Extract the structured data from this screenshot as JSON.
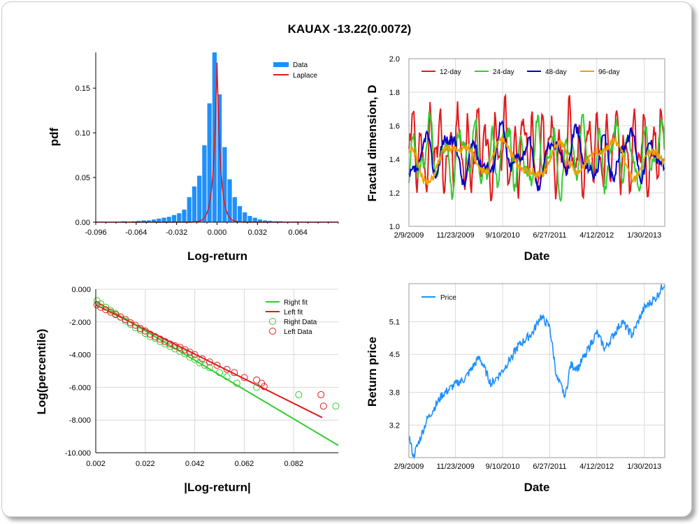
{
  "title": "KAUAX -13.22(0.0072)",
  "colors": {
    "data_bar": "#1e90ff",
    "laplace": "#e31a1c",
    "d12": "#e31a1c",
    "d24": "#33cc33",
    "d48": "#0000cc",
    "d96": "#f0a000",
    "right_fit": "#33cc33",
    "left_fit": "#e31a1c",
    "price": "#1e90ff",
    "grid": "#d9d9d9"
  },
  "chart_data": [
    {
      "type": "bar",
      "id": "pdf",
      "xlabel": "Log-return",
      "ylabel": "pdf",
      "xlim": [
        -0.096,
        0.096
      ],
      "ylim": [
        0,
        0.19
      ],
      "xticks": [
        "-0.096",
        "-0.064",
        "-0.032",
        "0.000",
        "0.032",
        "0.064"
      ],
      "yticks": [
        "0.00",
        "0.05",
        "0.10",
        "0.15"
      ],
      "legend": [
        "Data",
        "Laplace"
      ],
      "legend_position": "top-right",
      "bin_width": 0.004,
      "bin_centers": [
        -0.074,
        -0.07,
        -0.066,
        -0.062,
        -0.058,
        -0.054,
        -0.05,
        -0.046,
        -0.042,
        -0.038,
        -0.034,
        -0.03,
        -0.026,
        -0.022,
        -0.018,
        -0.014,
        -0.01,
        -0.006,
        -0.002,
        0.002,
        0.006,
        0.01,
        0.014,
        0.018,
        0.022,
        0.026,
        0.03,
        0.034,
        0.038,
        0.042,
        0.046,
        0.05,
        0.054,
        0.058,
        0.062,
        0.066,
        0.07,
        0.074
      ],
      "values": [
        0.001,
        0.0005,
        0.001,
        0.0015,
        0.002,
        0.002,
        0.003,
        0.004,
        0.005,
        0.006,
        0.008,
        0.01,
        0.014,
        0.028,
        0.04,
        0.052,
        0.086,
        0.133,
        0.19,
        0.143,
        0.084,
        0.048,
        0.028,
        0.018,
        0.011,
        0.007,
        0.005,
        0.003,
        0.002,
        0.0015,
        0.001,
        0.001,
        0.0005,
        0.0005,
        0.0005,
        0.0003,
        0.0003,
        0.0002
      ],
      "laplace": {
        "mu": 0.0,
        "b": 0.0028
      }
    },
    {
      "type": "line",
      "id": "fractal",
      "xlabel": "Date",
      "ylabel": "Fractal dimension, D",
      "ylim": [
        1.0,
        2.0
      ],
      "xticks": [
        "2/9/2009",
        "11/23/2009",
        "9/10/2010",
        "6/27/2011",
        "4/12/2012",
        "1/30/2013"
      ],
      "yticks": [
        "1.0",
        "1.2",
        "1.4",
        "1.6",
        "1.8",
        "2.0"
      ],
      "legend_position": "top",
      "x_start": "2/9/2009",
      "x_end": "6/5/2013",
      "x_step_days": 5,
      "series": [
        {
          "name": "12-day",
          "color_key": "d12",
          "base": 1.45,
          "amp": 0.3,
          "freq": 0.55,
          "seed": 11
        },
        {
          "name": "24-day",
          "color_key": "d24",
          "base": 1.42,
          "amp": 0.24,
          "freq": 0.33,
          "seed": 23
        },
        {
          "name": "48-day",
          "color_key": "d48",
          "base": 1.42,
          "amp": 0.18,
          "freq": 0.2,
          "seed": 37
        },
        {
          "name": "96-day",
          "color_key": "d96",
          "base": 1.4,
          "amp": 0.14,
          "freq": 0.1,
          "seed": 51
        }
      ]
    },
    {
      "type": "scatter",
      "id": "tail",
      "xlabel": "|Log-return|",
      "ylabel": "Log(percentile)",
      "xlim": [
        0.002,
        0.1
      ],
      "ylim": [
        -10.0,
        0.0
      ],
      "xticks": [
        "0.002",
        "0.022",
        "0.042",
        "0.062",
        "0.082"
      ],
      "yticks": [
        "0.000",
        "-2.000",
        "-4.000",
        "-6.000",
        "-8.000",
        "-10.000"
      ],
      "legend": [
        "Right fit",
        "Left fit",
        "Right Data",
        "Left Data"
      ],
      "legend_position": "top-right",
      "right_fit": {
        "x": [
          0.002,
          0.1
        ],
        "y": [
          -0.75,
          -9.55
        ]
      },
      "left_fit": {
        "x": [
          0.002,
          0.0935
        ],
        "y": [
          -0.95,
          -7.85
        ]
      },
      "right_data": {
        "x": [
          0.0025,
          0.004,
          0.006,
          0.008,
          0.01,
          0.012,
          0.014,
          0.016,
          0.018,
          0.02,
          0.022,
          0.024,
          0.026,
          0.028,
          0.03,
          0.032,
          0.034,
          0.036,
          0.038,
          0.04,
          0.042,
          0.044,
          0.046,
          0.048,
          0.052,
          0.055,
          0.059,
          0.067,
          0.084,
          0.099
        ],
        "y": [
          -0.7,
          -0.9,
          -1.1,
          -1.3,
          -1.5,
          -1.7,
          -1.95,
          -2.15,
          -2.35,
          -2.5,
          -2.7,
          -2.9,
          -3.0,
          -3.2,
          -3.35,
          -3.5,
          -3.65,
          -3.8,
          -3.95,
          -4.15,
          -4.3,
          -4.5,
          -4.65,
          -4.8,
          -5.1,
          -5.35,
          -5.75,
          -6.0,
          -6.45,
          -7.15
        ]
      },
      "left_data": {
        "x": [
          0.0025,
          0.004,
          0.006,
          0.008,
          0.01,
          0.012,
          0.014,
          0.016,
          0.018,
          0.02,
          0.022,
          0.024,
          0.026,
          0.028,
          0.03,
          0.032,
          0.034,
          0.036,
          0.038,
          0.04,
          0.042,
          0.045,
          0.048,
          0.051,
          0.055,
          0.058,
          0.062,
          0.067,
          0.069,
          0.07,
          0.093,
          0.094
        ],
        "y": [
          -0.95,
          -1.1,
          -1.25,
          -1.4,
          -1.55,
          -1.7,
          -1.85,
          -2.05,
          -2.2,
          -2.4,
          -2.55,
          -2.75,
          -2.9,
          -3.05,
          -3.2,
          -3.35,
          -3.45,
          -3.55,
          -3.7,
          -3.85,
          -4.0,
          -4.25,
          -4.45,
          -4.65,
          -4.9,
          -5.1,
          -5.4,
          -5.55,
          -5.75,
          -5.95,
          -6.45,
          -7.15
        ]
      }
    },
    {
      "type": "line",
      "id": "price",
      "xlabel": "Date",
      "ylabel": "Return price",
      "ylim": [
        2.6,
        5.8
      ],
      "xticks": [
        "2/9/2009",
        "11/23/2009",
        "9/10/2010",
        "6/27/2011",
        "4/12/2012",
        "1/30/2013"
      ],
      "yticks": [
        "3.2",
        "3.8",
        "4.5",
        "5.1"
      ],
      "legend": [
        "Price"
      ],
      "legend_position": "top-left",
      "x_start": "2/9/2009",
      "x_end": "6/5/2013",
      "x_step_days": 4,
      "anchors": [
        {
          "date": "2/9/2009",
          "value": 3.0
        },
        {
          "date": "3/9/2009",
          "value": 2.62
        },
        {
          "date": "6/1/2009",
          "value": 3.3
        },
        {
          "date": "9/1/2009",
          "value": 3.75
        },
        {
          "date": "11/23/2009",
          "value": 3.95
        },
        {
          "date": "1/20/2010",
          "value": 4.05
        },
        {
          "date": "4/20/2010",
          "value": 4.45
        },
        {
          "date": "7/1/2010",
          "value": 3.95
        },
        {
          "date": "9/10/2010",
          "value": 4.2
        },
        {
          "date": "12/15/2010",
          "value": 4.65
        },
        {
          "date": "3/15/2011",
          "value": 4.9
        },
        {
          "date": "5/1/2011",
          "value": 5.2
        },
        {
          "date": "6/27/2011",
          "value": 5.0
        },
        {
          "date": "8/10/2011",
          "value": 4.05
        },
        {
          "date": "10/3/2011",
          "value": 3.75
        },
        {
          "date": "11/1/2011",
          "value": 4.3
        },
        {
          "date": "12/20/2011",
          "value": 4.25
        },
        {
          "date": "4/12/2012",
          "value": 4.9
        },
        {
          "date": "6/1/2012",
          "value": 4.6
        },
        {
          "date": "9/14/2012",
          "value": 5.1
        },
        {
          "date": "11/15/2012",
          "value": 4.85
        },
        {
          "date": "1/30/2013",
          "value": 5.35
        },
        {
          "date": "4/15/2013",
          "value": 5.55
        },
        {
          "date": "6/5/2013",
          "value": 5.82
        }
      ]
    }
  ]
}
